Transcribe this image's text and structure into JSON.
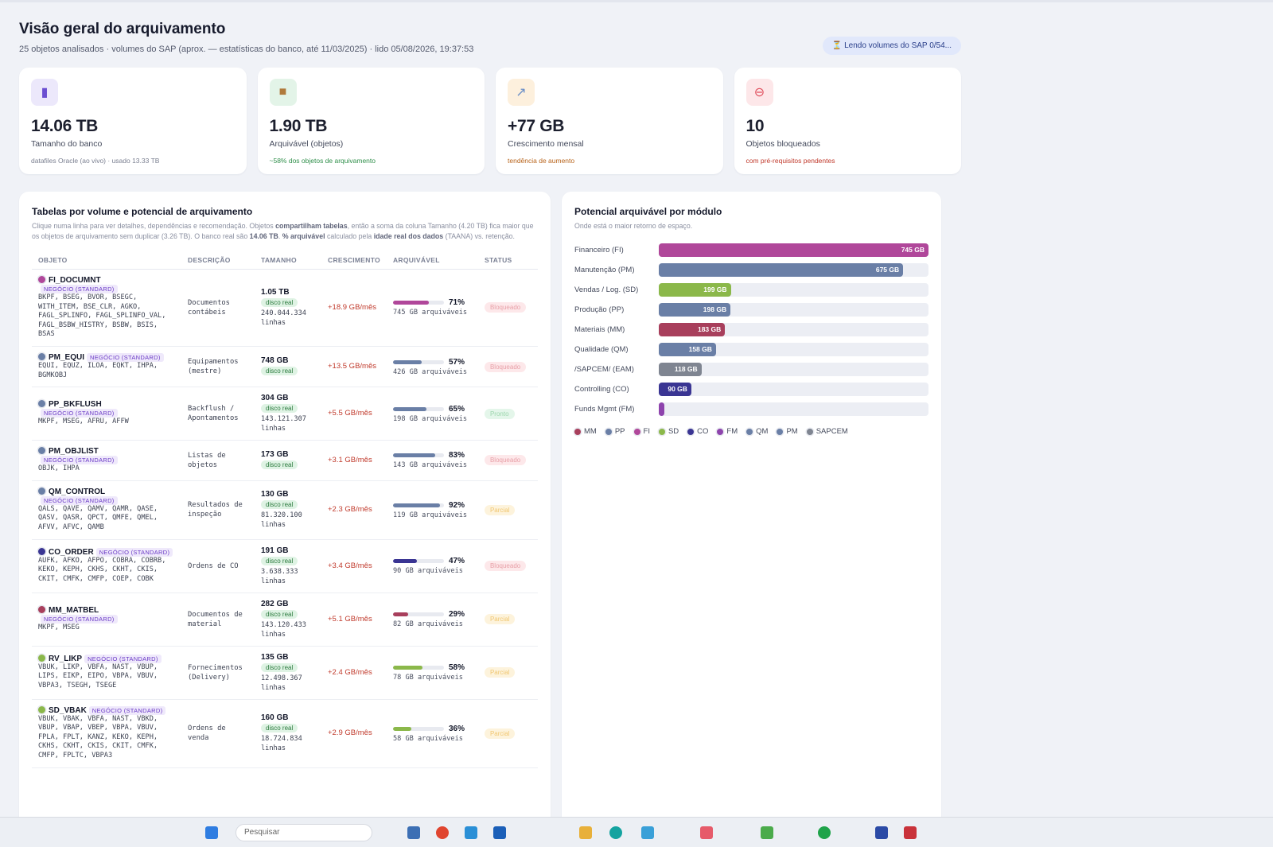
{
  "header": {
    "title": "Visão geral do arquivamento",
    "subtitle": "25 objetos analisados · volumes do SAP (aprox. — estatísticas do banco, até 11/03/2025) · lido 05/08/2026, 19:37:53",
    "loading": "⏳ Lendo volumes do SAP 0/54..."
  },
  "kpis": [
    {
      "icon": "database-icon",
      "value": "14.06 TB",
      "label": "Tamanho do banco",
      "note": "datafiles Oracle (ao vivo) · usado 13.33 TB",
      "note_color": "#7a7f90",
      "icon_bg": "#ece8fb",
      "icon_color": "#6b4fd1"
    },
    {
      "icon": "package-icon",
      "value": "1.90 TB",
      "label": "Arquivável (objetos)",
      "note": "~58% dos objetos de arquivamento",
      "note_color": "#2f8f4a",
      "icon_bg": "#e3f4e8",
      "icon_color": "#b07a3c"
    },
    {
      "icon": "trend-icon",
      "value": "+77 GB",
      "label": "Crescimento mensal",
      "note": "tendência de aumento",
      "note_color": "#b8641c",
      "icon_bg": "#fdf0dd",
      "icon_color": "#6b8fc7"
    },
    {
      "icon": "blocked-icon",
      "value": "10",
      "label": "Objetos bloqueados",
      "note": "com pré-requisitos pendentes",
      "note_color": "#c0392b",
      "icon_bg": "#fde7e9",
      "icon_color": "#e0505e"
    }
  ],
  "tables": {
    "title": "Tabelas por volume e potencial de arquivamento",
    "desc_1": "Clique numa linha para ver detalhes, dependências e recomendação. Objetos ",
    "desc_b1": "compartilham tabelas",
    "desc_2": ", então a soma da coluna Tamanho (4.20 TB) fica maior que os objetos de arquivamento sem duplicar (3.26 TB). O banco real são ",
    "desc_b2": "14.06 TB",
    "desc_3": ". ",
    "desc_b3": "% arquivável",
    "desc_4": " calculado pela ",
    "desc_b4": "idade real dos dados",
    "desc_5": " (TAANA) vs. retenção.",
    "columns": [
      "OBJETO",
      "DESCRIÇÃO",
      "TAMANHO",
      "CRESCIMENTO",
      "ARQUIVÁVEL",
      "STATUS"
    ],
    "rows": [
      {
        "name": "FI_DOCUMNT",
        "tag": "NEGÓCIO (STANDARD)",
        "color": "#b0479a",
        "tables": "BKPF, BSEG, BVOR, BSEGC, WITH_ITEM, BSE_CLR, AGKO, FAGL_SPLINFO, FAGL_SPLINFO_VAL, FAGL_BSBW_HISTRY, BSBW, BSIS, BSAS",
        "desc": "Documentos contábeis",
        "size": "1.05 TB",
        "disk": "disco real",
        "rows": "240.044.334 linhas",
        "growth": "+18.9 GB/mês",
        "pct": 71,
        "pct_label": "71%",
        "archivable": "745 GB arquiváveis",
        "status": "Bloqueado",
        "status_cls": "st-bloq"
      },
      {
        "name": "PM_EQUI",
        "tag": "NEGÓCIO (STANDARD)",
        "color": "#6a7fa6",
        "tables": "EQUI, EQUZ, ILOA, EQKT, IHPA, BGMKOBJ",
        "desc": "Equipamentos (mestre)",
        "size": "748 GB",
        "disk": "disco real",
        "rows": "",
        "growth": "+13.5 GB/mês",
        "pct": 57,
        "pct_label": "57%",
        "archivable": "426 GB arquiváveis",
        "status": "Bloqueado",
        "status_cls": "st-bloq"
      },
      {
        "name": "PP_BKFLUSH",
        "tag": "NEGÓCIO (STANDARD)",
        "color": "#6a7fa6",
        "tables": "MKPF, MSEG, AFRU, AFFW",
        "desc": "Backflush / Apontamentos",
        "size": "304 GB",
        "disk": "disco real",
        "rows": "143.121.307 linhas",
        "growth": "+5.5 GB/mês",
        "pct": 65,
        "pct_label": "65%",
        "archivable": "198 GB arquiváveis",
        "status": "Pronto",
        "status_cls": "st-pronto"
      },
      {
        "name": "PM_OBJLIST",
        "tag": "NEGÓCIO (STANDARD)",
        "color": "#6a7fa6",
        "tables": "OBJK, IHPA",
        "desc": "Listas de objetos",
        "size": "173 GB",
        "disk": "disco real",
        "rows": "",
        "growth": "+3.1 GB/mês",
        "pct": 83,
        "pct_label": "83%",
        "archivable": "143 GB arquiváveis",
        "status": "Bloqueado",
        "status_cls": "st-bloq"
      },
      {
        "name": "QM_CONTROL",
        "tag": "NEGÓCIO (STANDARD)",
        "color": "#6a7fa6",
        "tables": "QALS, QAVE, QAMV, QAMR, QASE, QASV, QASR, QPCT, QMFE, QMEL, AFVV, AFVC, QAMB",
        "desc": "Resultados de inspeção",
        "size": "130 GB",
        "disk": "disco real",
        "rows": "81.320.100 linhas",
        "growth": "+2.3 GB/mês",
        "pct": 92,
        "pct_label": "92%",
        "archivable": "119 GB arquiváveis",
        "status": "Parcial",
        "status_cls": "st-parcial"
      },
      {
        "name": "CO_ORDER",
        "tag": "NEGÓCIO (STANDARD)",
        "color": "#3a3593",
        "tables": "AUFK, AFKO, AFPO, COBRA, COBRB, KEKO, KEPH, CKHS, CKHT, CKIS, CKIT, CMFK, CMFP, COEP, COBK",
        "desc": "Ordens de CO",
        "size": "191 GB",
        "disk": "disco real",
        "rows": "3.638.333 linhas",
        "growth": "+3.4 GB/mês",
        "pct": 47,
        "pct_label": "47%",
        "archivable": "90 GB arquiváveis",
        "status": "Bloqueado",
        "status_cls": "st-bloq"
      },
      {
        "name": "MM_MATBEL",
        "tag": "NEGÓCIO (STANDARD)",
        "color": "#a83f5c",
        "tables": "MKPF, MSEG",
        "desc": "Documentos de material",
        "size": "282 GB",
        "disk": "disco real",
        "rows": "143.120.433 linhas",
        "growth": "+5.1 GB/mês",
        "pct": 29,
        "pct_label": "29%",
        "archivable": "82 GB arquiváveis",
        "status": "Parcial",
        "status_cls": "st-parcial"
      },
      {
        "name": "RV_LIKP",
        "tag": "NEGÓCIO (STANDARD)",
        "color": "#8bb84a",
        "tables": "VBUK, LIKP, VBFA, NAST, VBUP, LIPS, EIKP, EIPO, VBPA, VBUV, VBPA3, TSEGH, TSEGE",
        "desc": "Fornecimentos (Delivery)",
        "size": "135 GB",
        "disk": "disco real",
        "rows": "12.498.367 linhas",
        "growth": "+2.4 GB/mês",
        "pct": 58,
        "pct_label": "58%",
        "archivable": "78 GB arquiváveis",
        "status": "Parcial",
        "status_cls": "st-parcial"
      },
      {
        "name": "SD_VBAK",
        "tag": "NEGÓCIO (STANDARD)",
        "color": "#8bb84a",
        "tables": "VBUK, VBAK, VBFA, NAST, VBKD, VBUP, VBAP, VBEP, VBPA, VBUV, FPLA, FPLT, KANZ, KEKO, KEPH, CKHS, CKHT, CKIS, CKIT, CMFK, CMFP, FPLTC, VBPA3",
        "desc": "Ordens de venda",
        "size": "160 GB",
        "disk": "disco real",
        "rows": "18.724.834 linhas",
        "growth": "+2.9 GB/mês",
        "pct": 36,
        "pct_label": "36%",
        "archivable": "58 GB arquiváveis",
        "status": "Parcial",
        "status_cls": "st-parcial"
      }
    ]
  },
  "chart_data": {
    "type": "bar",
    "title": "Potencial arquivável por módulo",
    "subtitle": "Onde está o maior retorno de espaço.",
    "categories": [
      "Financeiro (FI)",
      "Manutenção (PM)",
      "Vendas / Log. (SD)",
      "Produção (PP)",
      "Materiais (MM)",
      "Qualidade (QM)",
      "/SAPCEM/ (EAM)",
      "Controlling (CO)",
      "Funds Mgmt (FM)"
    ],
    "values": [
      745,
      675,
      199,
      198,
      183,
      158,
      118,
      90,
      3
    ],
    "value_labels": [
      "745 GB",
      "675 GB",
      "199 GB",
      "198 GB",
      "183 GB",
      "158 GB",
      "118 GB",
      "90 GB",
      ""
    ],
    "colors": [
      "#b0479a",
      "#6a7fa6",
      "#8bb84a",
      "#6a7fa6",
      "#a83f5c",
      "#6a7fa6",
      "#7f8591",
      "#3a3593",
      "#8e44ad"
    ],
    "xlim": [
      0,
      745
    ],
    "legend": [
      {
        "name": "MM",
        "color": "#a83f5c"
      },
      {
        "name": "PP",
        "color": "#6a7fa6"
      },
      {
        "name": "FI",
        "color": "#b0479a"
      },
      {
        "name": "SD",
        "color": "#8bb84a"
      },
      {
        "name": "CO",
        "color": "#3a3593"
      },
      {
        "name": "FM",
        "color": "#8e44ad"
      },
      {
        "name": "QM",
        "color": "#6a7fa6"
      },
      {
        "name": "PM",
        "color": "#6a7fa6"
      },
      {
        "name": "SAPCEM",
        "color": "#7f8591"
      }
    ]
  },
  "taskbar": {
    "search_placeholder": "Pesquisar"
  }
}
